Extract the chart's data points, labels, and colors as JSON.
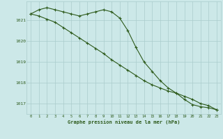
{
  "line1": [
    1021.3,
    1021.5,
    1021.6,
    1021.5,
    1021.4,
    1021.3,
    1021.2,
    1021.3,
    1021.4,
    1021.5,
    1021.4,
    1021.1,
    1020.5,
    1019.7,
    1019.0,
    1018.55,
    1018.1,
    1017.75,
    1017.5,
    1017.2,
    1016.95,
    1016.85,
    1016.8,
    1016.7
  ],
  "line2": [
    1021.3,
    1021.2,
    1021.05,
    1020.9,
    1020.65,
    1020.4,
    1020.15,
    1019.9,
    1019.65,
    1019.4,
    1019.1,
    1018.85,
    1018.6,
    1018.35,
    1018.1,
    1017.9,
    1017.75,
    1017.6,
    1017.5,
    1017.35,
    1017.2,
    1017.0,
    1016.9,
    1016.7
  ],
  "x": [
    0,
    1,
    2,
    3,
    4,
    5,
    6,
    7,
    8,
    9,
    10,
    11,
    12,
    13,
    14,
    15,
    16,
    17,
    18,
    19,
    20,
    21,
    22,
    23
  ],
  "xlim": [
    -0.5,
    23.5
  ],
  "ylim": [
    1016.5,
    1021.9
  ],
  "yticks": [
    1017,
    1018,
    1019,
    1020,
    1021
  ],
  "xtick_labels": [
    "0",
    "1",
    "2",
    "3",
    "4",
    "5",
    "6",
    "7",
    "8",
    "9",
    "10",
    "11",
    "12",
    "13",
    "14",
    "15",
    "16",
    "17",
    "18",
    "19",
    "20",
    "21",
    "22",
    "23"
  ],
  "xlabel": "Graphe pression niveau de la mer (hPa)",
  "line_color": "#2d5a1b",
  "bg_color": "#cce8e8",
  "grid_color": "#aacccc",
  "marker": "+"
}
